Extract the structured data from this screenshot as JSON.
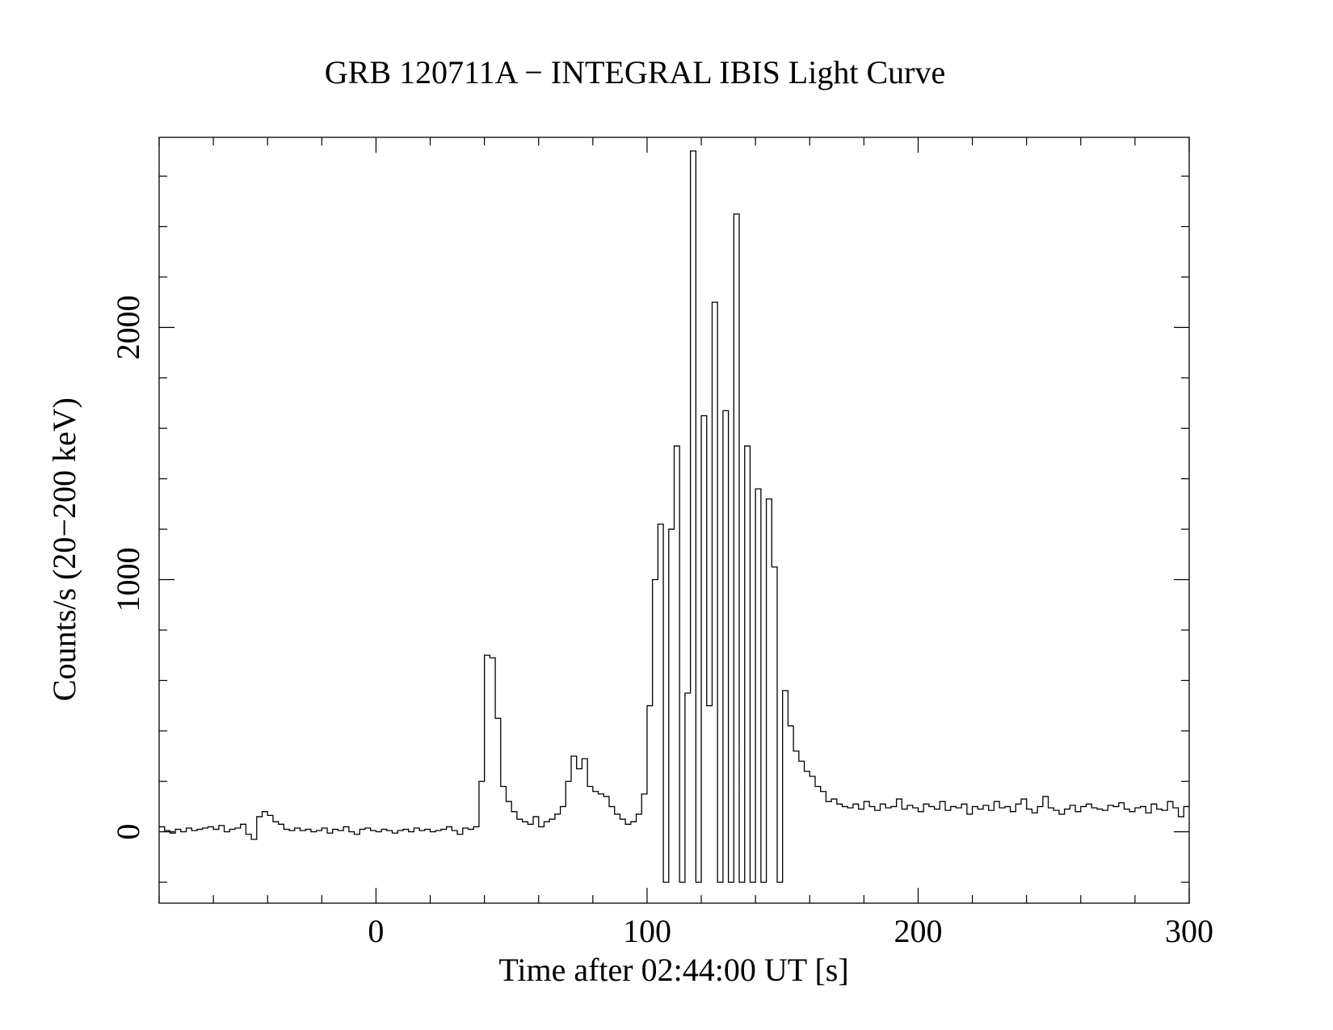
{
  "chart_data": {
    "type": "step",
    "title": "GRB 120711A − INTEGRAL IBIS Light Curve",
    "x_label": "Time after 02:44:00 UT [s]",
    "y_label": "Counts/s (20−200 keV)",
    "xlim": [
      -80,
      300
    ],
    "ylim": [
      -283,
      2754
    ],
    "xticks": [
      0,
      100,
      200,
      300
    ],
    "yticks": [
      0,
      1000,
      2000
    ],
    "xminor_ticks": [
      -80,
      -60,
      -40,
      -20,
      20,
      40,
      60,
      80,
      120,
      140,
      160,
      180,
      220,
      240,
      260,
      280
    ],
    "yminor_ticks": [
      -200,
      200,
      400,
      600,
      800,
      1200,
      1400,
      1600,
      1800,
      2200,
      2400,
      2600
    ],
    "color": "#000000",
    "x": [
      -79,
      -77,
      -75,
      -73,
      -71,
      -69,
      -67,
      -65,
      -63,
      -61,
      -59,
      -57,
      -55,
      -53,
      -51,
      -49,
      -47,
      -45,
      -43,
      -41,
      -39,
      -37,
      -35,
      -33,
      -31,
      -29,
      -27,
      -25,
      -23,
      -21,
      -19,
      -17,
      -15,
      -13,
      -11,
      -9,
      -7,
      -5,
      -3,
      -1,
      1,
      3,
      5,
      7,
      9,
      11,
      13,
      15,
      17,
      19,
      21,
      23,
      25,
      27,
      29,
      31,
      33,
      35,
      37,
      39,
      41,
      43,
      45,
      47,
      49,
      51,
      53,
      55,
      57,
      59,
      61,
      63,
      65,
      67,
      69,
      71,
      73,
      75,
      77,
      79,
      81,
      83,
      85,
      87,
      89,
      91,
      93,
      95,
      97,
      99,
      101,
      103,
      105,
      107,
      109,
      111,
      113,
      115,
      117,
      119,
      121,
      123,
      125,
      127,
      129,
      131,
      133,
      135,
      137,
      139,
      141,
      143,
      145,
      147,
      149,
      151,
      153,
      155,
      157,
      159,
      161,
      163,
      165,
      167,
      169,
      171,
      173,
      175,
      177,
      179,
      181,
      183,
      185,
      187,
      189,
      191,
      193,
      195,
      197,
      199,
      201,
      203,
      205,
      207,
      209,
      211,
      213,
      215,
      217,
      219,
      221,
      223,
      225,
      227,
      229,
      231,
      233,
      235,
      237,
      239,
      241,
      243,
      245,
      247,
      249,
      251,
      253,
      255,
      257,
      259,
      261,
      263,
      265,
      267,
      269,
      271,
      273,
      275,
      277,
      279,
      281,
      283,
      285,
      287,
      289,
      291,
      293,
      295,
      297,
      299
    ],
    "values": [
      20,
      5,
      -5,
      10,
      0,
      15,
      5,
      10,
      15,
      20,
      10,
      25,
      0,
      10,
      15,
      30,
      -10,
      -30,
      60,
      80,
      65,
      40,
      30,
      10,
      5,
      15,
      5,
      10,
      0,
      5,
      15,
      -5,
      10,
      5,
      20,
      0,
      -10,
      10,
      15,
      5,
      0,
      10,
      5,
      -5,
      5,
      10,
      0,
      15,
      5,
      10,
      0,
      5,
      10,
      20,
      5,
      -10,
      15,
      10,
      20,
      200,
      700,
      690,
      450,
      180,
      120,
      80,
      50,
      40,
      30,
      60,
      20,
      40,
      50,
      70,
      100,
      200,
      300,
      250,
      290,
      180,
      160,
      150,
      140,
      100,
      70,
      50,
      30,
      40,
      70,
      150,
      500,
      1000,
      1220,
      -200,
      1200,
      1530,
      -200,
      550,
      2700,
      -200,
      1650,
      500,
      2100,
      -200,
      1670,
      -200,
      2450,
      -200,
      1530,
      -200,
      1360,
      -200,
      1320,
      1050,
      -200,
      560,
      420,
      320,
      280,
      240,
      220,
      180,
      160,
      120,
      130,
      110,
      100,
      95,
      110,
      90,
      120,
      100,
      85,
      110,
      95,
      100,
      130,
      90,
      105,
      95,
      80,
      110,
      100,
      90,
      120,
      85,
      100,
      95,
      110,
      70,
      100,
      90,
      105,
      85,
      120,
      95,
      100,
      80,
      110,
      130,
      90,
      75,
      100,
      140,
      95,
      85,
      70,
      90,
      105,
      80,
      100,
      110,
      95,
      90,
      85,
      105,
      100,
      115,
      90,
      80,
      95,
      100,
      75,
      110,
      90,
      85,
      120,
      95,
      60,
      100
    ]
  }
}
